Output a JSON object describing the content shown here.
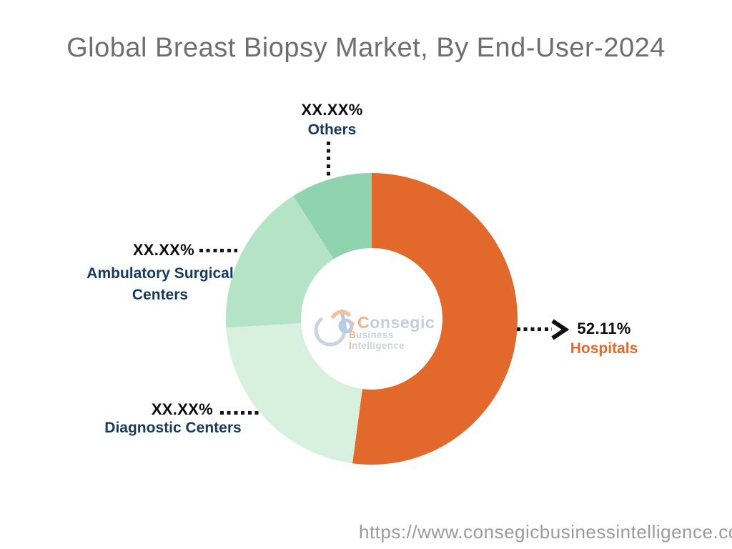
{
  "page": {
    "title": "Global Breast Biopsy Market, By End-User-2024",
    "footer_url": "https://www.consegicbusinessintelligence.co"
  },
  "watermark": {
    "brand_first": "C",
    "brand_rest": "onsegic",
    "tagline_first": "B",
    "tagline_mid": "usiness ",
    "tagline_second_first": "I",
    "tagline_rest": "ntelligence"
  },
  "chart_data": {
    "type": "pie",
    "subtype": "donut",
    "title": "Global Breast Biopsy Market, By End-User-2024",
    "start_angle_deg": 0,
    "direction": "clockwise",
    "grid": false,
    "legend_position": "none",
    "inner_radius_ratio": 0.485,
    "segments": [
      {
        "label": "Hospitals",
        "display_value": "52.11%",
        "value_pct": 52.11,
        "color": "#E2692B",
        "label_color": "#E2692B",
        "label_line1": "Hospitals"
      },
      {
        "label": "Diagnostic Centers",
        "display_value": "XX.XX%",
        "value_pct": 21.92,
        "color": "#D8F0DE",
        "label_color": "#17395E",
        "label_line1": "Diagnostic Centers"
      },
      {
        "label": "Ambulatory Surgical Centers",
        "display_value": "XX.XX%",
        "value_pct": 16.94,
        "color": "#B5E3C6",
        "label_color": "#17395E",
        "label_line1": "Ambulatory Surgical",
        "label_line2": "Centers"
      },
      {
        "label": "Others",
        "display_value": "XX.XX%",
        "value_pct": 9.03,
        "color": "#8FD4AE",
        "label_color": "#17395E",
        "label_line1": "Others"
      }
    ]
  }
}
